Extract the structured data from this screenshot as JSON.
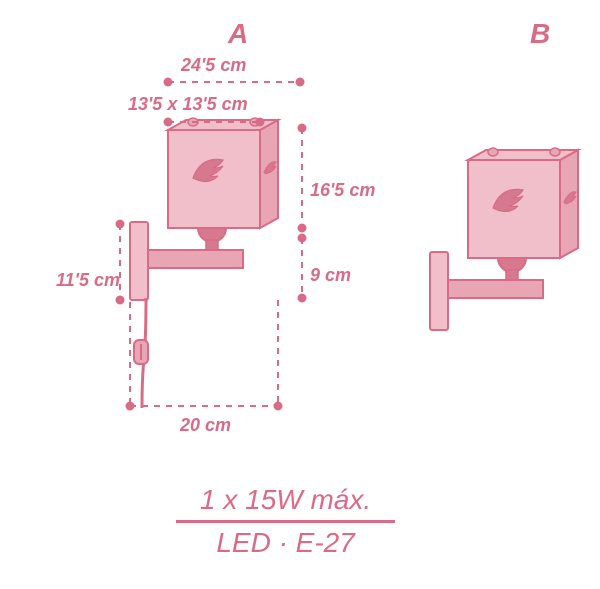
{
  "colors": {
    "ink": "#d96b86",
    "fill_light": "#f1bfc9",
    "fill_mid": "#e8a5b3",
    "fill_dark": "#d6798f",
    "stroke": "#d96b86",
    "bg": "#ffffff"
  },
  "variants": {
    "a": {
      "label": "A"
    },
    "b": {
      "label": "B"
    }
  },
  "dimensions": {
    "top_depth": "24'5 cm",
    "shade_base": "13'5 x 13'5 cm",
    "shade_height": "16'5 cm",
    "bracket_drop": "9 cm",
    "wall_plate_h": "11'5 cm",
    "projection": "20 cm"
  },
  "spec": {
    "power": "1 x 15W máx.",
    "socket": "LED · E-27"
  },
  "style": {
    "dash": "6,6",
    "dim_stroke_w": 2,
    "outline_w": 2,
    "label_fs": 18,
    "variant_fs": 28,
    "spec_fs": 28
  }
}
